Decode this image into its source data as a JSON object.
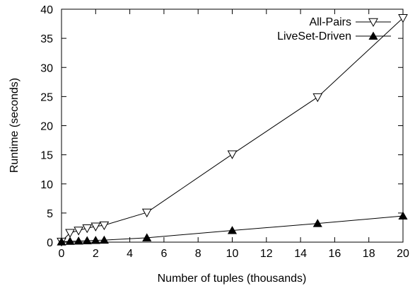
{
  "chart_data": {
    "type": "line",
    "title": "",
    "xlabel": "Number of tuples (thousands)",
    "ylabel": "Runtime (seconds)",
    "xlim": [
      0,
      20
    ],
    "ylim": [
      0,
      40
    ],
    "xticks": [
      0,
      2,
      4,
      6,
      8,
      10,
      12,
      14,
      16,
      18,
      20
    ],
    "yticks": [
      0,
      5,
      10,
      15,
      20,
      25,
      30,
      35,
      40
    ],
    "grid": false,
    "legend_position": "top-right",
    "series": [
      {
        "name": "All-Pairs",
        "marker": "open-down-triangle",
        "color": "#000000",
        "x": [
          0,
          0.5,
          1,
          1.5,
          2,
          2.5,
          5,
          10,
          15,
          20
        ],
        "y": [
          0.1,
          1.6,
          2.0,
          2.4,
          2.7,
          2.9,
          5.1,
          15.1,
          24.9,
          38.5
        ]
      },
      {
        "name": "LiveSet-Driven",
        "marker": "filled-up-triangle",
        "color": "#000000",
        "x": [
          0,
          0.5,
          1,
          1.5,
          2,
          2.5,
          5,
          10,
          15,
          20
        ],
        "y": [
          0.05,
          0.15,
          0.2,
          0.25,
          0.3,
          0.35,
          0.75,
          2.0,
          3.2,
          4.5
        ]
      }
    ]
  }
}
